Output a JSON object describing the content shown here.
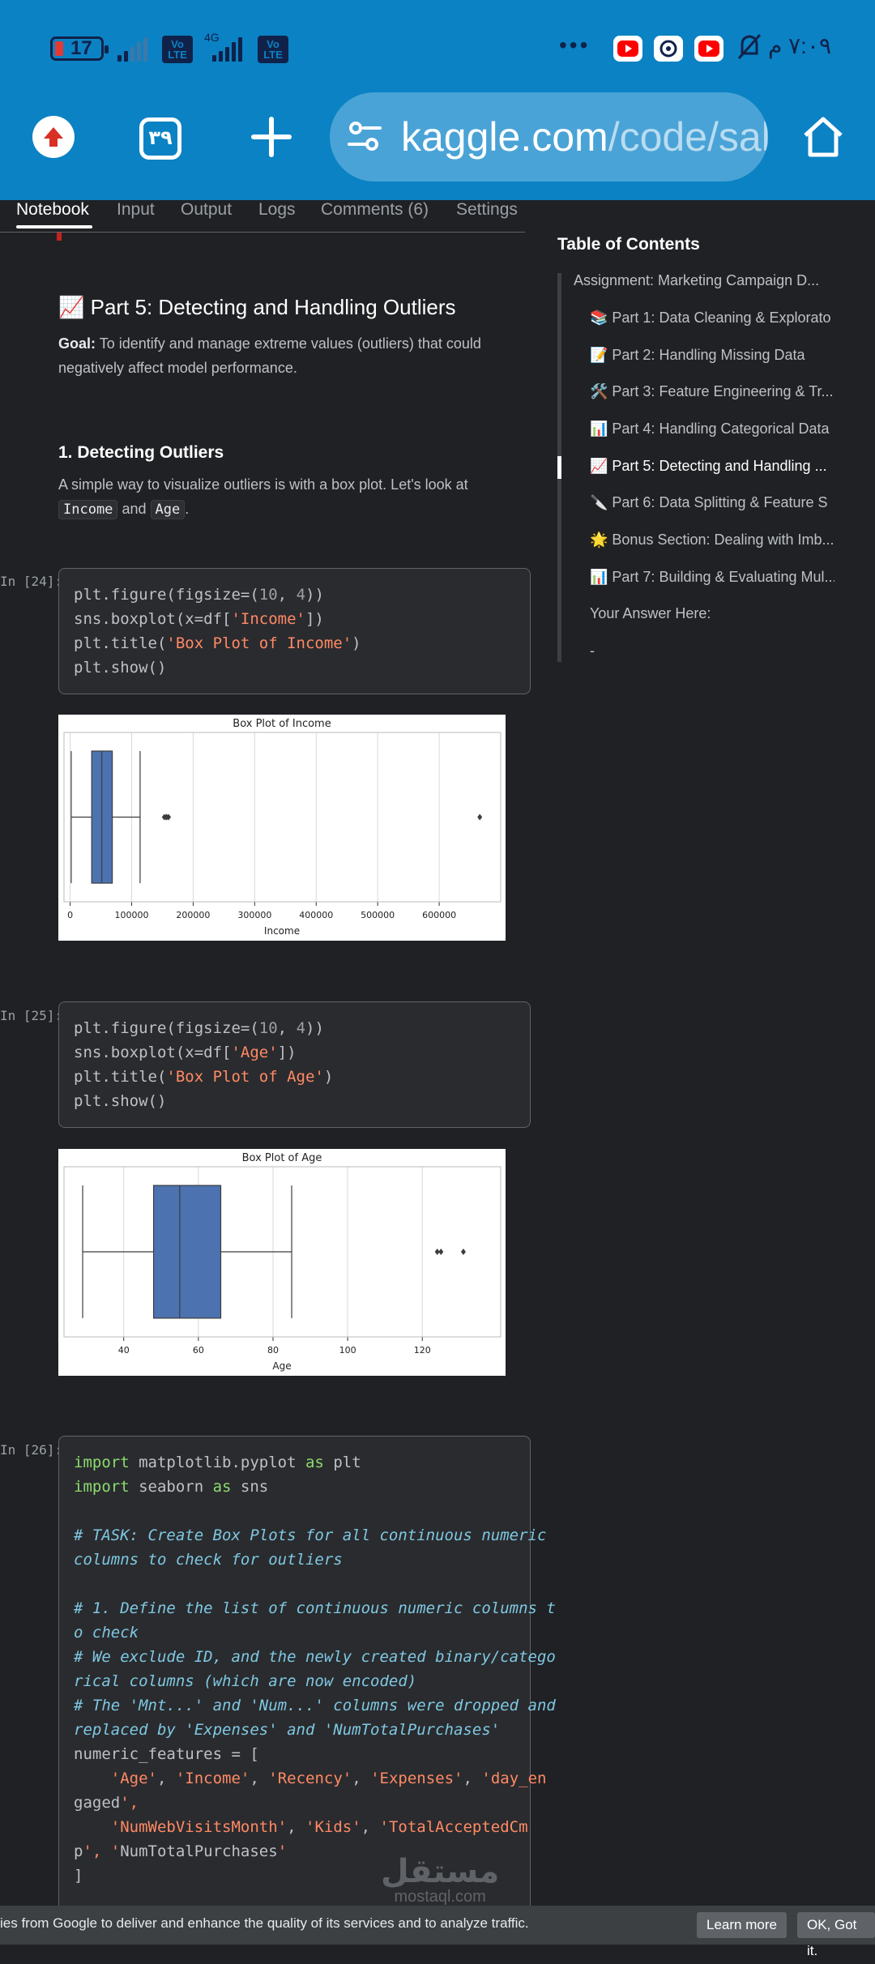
{
  "status_bar": {
    "battery": "17",
    "network": "4G",
    "volte_label": "Vo LTE",
    "time": "٧:٠٩ م",
    "more": "•••"
  },
  "browser": {
    "tab_count": "٣٩",
    "url_host": "kaggle.com",
    "url_path": "/code/salr"
  },
  "kaggle_tabs": [
    "Notebook",
    "Input",
    "Output",
    "Logs",
    "Comments (6)",
    "Settings"
  ],
  "notebook": {
    "part5_title": "📈 Part 5: Detecting and Handling Outliers",
    "goal_label": "Goal:",
    "goal_text": " To identify and manage extreme values (outliers) that could negatively affect model performance.",
    "section1_title": "1. Detecting Outliers",
    "section1_text": "A simple way to visualize outliers is with a box plot. Let's look at",
    "chip_income": "Income",
    "and_word": "and",
    "chip_age": "Age",
    "period": ".",
    "cells": [
      {
        "prompt": "In [24]:",
        "lines": [
          "plt.figure(figsize=(10, 4))",
          "sns.boxplot(x=df['Income'])",
          "plt.title('Box Plot of Income')",
          "plt.show()"
        ]
      },
      {
        "prompt": "In [25]:",
        "lines": [
          "plt.figure(figsize=(10, 4))",
          "sns.boxplot(x=df['Age'])",
          "plt.title('Box Plot of Age')",
          "plt.show()"
        ]
      },
      {
        "prompt": "In [26]:",
        "lines": [
          "import matplotlib.pyplot as plt",
          "import seaborn as sns",
          "",
          "# TASK: Create Box Plots for all continuous numeric",
          "columns to check for outliers",
          "",
          "# 1. Define the list of continuous numeric columns t",
          "o check",
          "# We exclude ID, and the newly created binary/catego",
          "rical columns (which are now encoded)",
          "# The 'Mnt...' and 'Num...' columns were dropped and",
          "replaced by 'Expenses' and 'NumTotalPurchases'",
          "numeric_features = [",
          "    'Age', 'Income', 'Recency', 'Expenses', 'day_en",
          "gaged',",
          "    'NumWebVisitsMonth', 'Kids', 'TotalAcceptedCm",
          "p', 'NumTotalPurchases'",
          "]"
        ]
      }
    ]
  },
  "toc": {
    "title": "Table of Contents",
    "items": [
      "Assignment: Marketing Campaign D...",
      "📚 Part 1: Data Cleaning & Explorato",
      "📝 Part 2: Handling Missing Data",
      "🛠️ Part 3: Feature Engineering & Tr...",
      "📊 Part 4: Handling Categorical Data",
      "📈 Part 5: Detecting and Handling ...",
      "🔪 Part 6: Data Splitting & Feature S",
      "🌟 Bonus Section: Dealing with Imb...",
      "📊 Part 7: Building & Evaluating Mul...",
      "Your Answer Here:",
      "-"
    ]
  },
  "chart_data": [
    {
      "type": "box",
      "title": "Box Plot of Income",
      "xlabel": "Income",
      "xticks": [
        0,
        100000,
        200000,
        300000,
        400000,
        500000,
        600000
      ],
      "xlim": [
        -10000,
        700000
      ],
      "whisker_low": 1730,
      "q1": 35000,
      "median": 51400,
      "q3": 68500,
      "whisker_high": 113700,
      "outliers": [
        153000,
        156000,
        157000,
        160000,
        666000
      ],
      "grid": "vertical"
    },
    {
      "type": "box",
      "title": "Box Plot of Age",
      "xlabel": "Age",
      "xticks": [
        40,
        60,
        80,
        100,
        120
      ],
      "xlim": [
        24,
        141
      ],
      "whisker_low": 29,
      "q1": 48,
      "median": 55,
      "q3": 66,
      "whisker_high": 85,
      "outliers": [
        124,
        125,
        131
      ],
      "grid": "vertical"
    }
  ],
  "cookie": {
    "text": "ies from Google to deliver and enhance the quality of its services and to analyze traffic.",
    "learn_more": "Learn more",
    "ok": "OK, Got it."
  },
  "watermark": {
    "arabic": "مستقل",
    "domain": "mostaql.com"
  }
}
